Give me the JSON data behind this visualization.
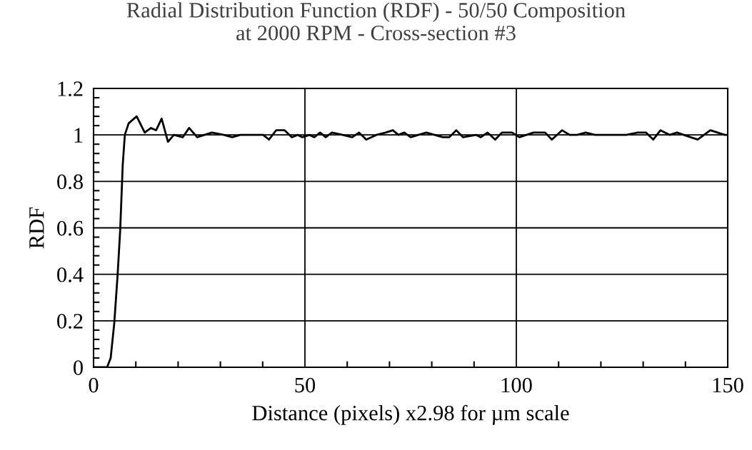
{
  "chart_data": {
    "type": "line",
    "title": "Radial Distribution Function (RDF) - 50/50 Composition\nat 2000 RPM - Cross-section #3",
    "xlabel": "Distance (pixels) x2.98 for µm scale",
    "ylabel": "RDF",
    "x": [
      0,
      3.2,
      4.05,
      4.9,
      5.7,
      6.3,
      6.9,
      7.4,
      8.3,
      10.2,
      12.1,
      13.6,
      14.8,
      16.1,
      17.6,
      19.0,
      21.1,
      22.6,
      24.5,
      28.0,
      30.8,
      32.8,
      34.7,
      37.6,
      40.1,
      41.5,
      43.2,
      45.2,
      46.9,
      48.3,
      49.4,
      51.1,
      52.2,
      53.6,
      54.9,
      56.4,
      58.9,
      61.2,
      62.8,
      64.5,
      66.9,
      69.1,
      70.8,
      72.1,
      73.5,
      75.0,
      78.7,
      82.6,
      84.1,
      85.8,
      87.4,
      90.5,
      91.6,
      93.2,
      95.0,
      96.6,
      99.0,
      100.7,
      104.1,
      106.8,
      108.4,
      110.8,
      112.6,
      114.4,
      116.4,
      118.6,
      122.0,
      126.0,
      128.7,
      130.7,
      132.4,
      134.1,
      136.3,
      138.0,
      141.2,
      142.9,
      145.9,
      149.3,
      150
    ],
    "series": [
      {
        "color": "#000000",
        "values": [
          0,
          0,
          0.04,
          0.19,
          0.4,
          0.59,
          0.87,
          1.0,
          1.05,
          1.08,
          1.01,
          1.03,
          1.02,
          1.07,
          0.97,
          1.0,
          0.99,
          1.03,
          0.99,
          1.01,
          1.0,
          0.99,
          1.0,
          1.0,
          1.0,
          0.98,
          1.02,
          1.02,
          0.99,
          1.0,
          0.99,
          1.0,
          0.99,
          1.01,
          0.99,
          1.01,
          1.0,
          0.99,
          1.01,
          0.98,
          1.0,
          1.01,
          1.02,
          1.0,
          1.01,
          0.99,
          1.01,
          0.99,
          0.99,
          1.02,
          0.99,
          1.0,
          0.99,
          1.01,
          0.98,
          1.01,
          1.01,
          0.99,
          1.01,
          1.01,
          0.98,
          1.02,
          1.0,
          1.0,
          1.01,
          1.0,
          1.0,
          1.0,
          1.01,
          1.01,
          0.98,
          1.02,
          1.0,
          1.01,
          0.99,
          0.98,
          1.02,
          1.0,
          1.0
        ]
      }
    ],
    "xlim": [
      0,
      150
    ],
    "xticks": [
      0,
      50,
      100,
      150
    ],
    "ylim": [
      0,
      1.2
    ],
    "yticks": [
      0,
      {
        "value": 0.2,
        "label": "0.2"
      },
      {
        "value": 0.4,
        "label": "0.4"
      },
      {
        "value": 0.6,
        "label": "0.6"
      },
      {
        "value": 0.8,
        "label": "0.8"
      },
      1,
      {
        "value": 1.2,
        "label": "1.2"
      }
    ],
    "grid": true,
    "marker": "none",
    "line_style": "solid"
  }
}
